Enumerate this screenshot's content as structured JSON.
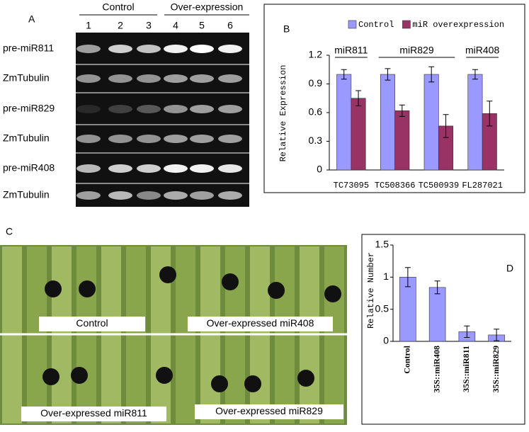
{
  "panel_a": {
    "label": "A",
    "groups": [
      "Control",
      "Over-expression"
    ],
    "lanes": [
      "1",
      "2",
      "3",
      "4",
      "5",
      "6"
    ],
    "rows": [
      "pre-miR811",
      "ZmTubulin",
      "pre-miR829",
      "ZmTubulin",
      "pre-miR408",
      "ZmTubulin"
    ]
  },
  "panel_c": {
    "label": "C",
    "captions": [
      "Control",
      "Over-expressed miR408",
      "Over-expressed miR811",
      "Over-expressed miR829"
    ]
  },
  "chart_data": [
    {
      "type": "bar",
      "panel_label": "B",
      "y_label": "Relative Expression",
      "categories": [
        "TC73095",
        "TC508366",
        "TC500939",
        "FL287021"
      ],
      "group_labels": [
        "miR811",
        "miR829",
        "miR408"
      ],
      "series": [
        {
          "name": "Control",
          "color": "#9999ff",
          "values": [
            1,
            1,
            1,
            1
          ],
          "errors": [
            0.05,
            0.06,
            0.08,
            0.05
          ]
        },
        {
          "name": "miR overexpression",
          "color": "#993366",
          "values": [
            0.75,
            0.62,
            0.46,
            0.59
          ],
          "errors": [
            0.08,
            0.06,
            0.12,
            0.13
          ]
        }
      ],
      "ylim": [
        0,
        1.2
      ],
      "yticks": [
        0,
        0.3,
        0.6,
        0.9,
        1.2
      ],
      "legend": "top"
    },
    {
      "type": "bar",
      "panel_label": "D",
      "y_label": "Relative Number",
      "categories": [
        "Control",
        "35S::miR408",
        "35S::miR811",
        "35S::miR829"
      ],
      "series": [
        {
          "color": "#9999ff",
          "values": [
            1,
            0.84,
            0.15,
            0.1
          ],
          "errors": [
            0.15,
            0.1,
            0.09,
            0.09
          ]
        }
      ],
      "ylim": [
        0,
        1.5
      ],
      "yticks": [
        0,
        0.5,
        1,
        1.5
      ]
    }
  ]
}
